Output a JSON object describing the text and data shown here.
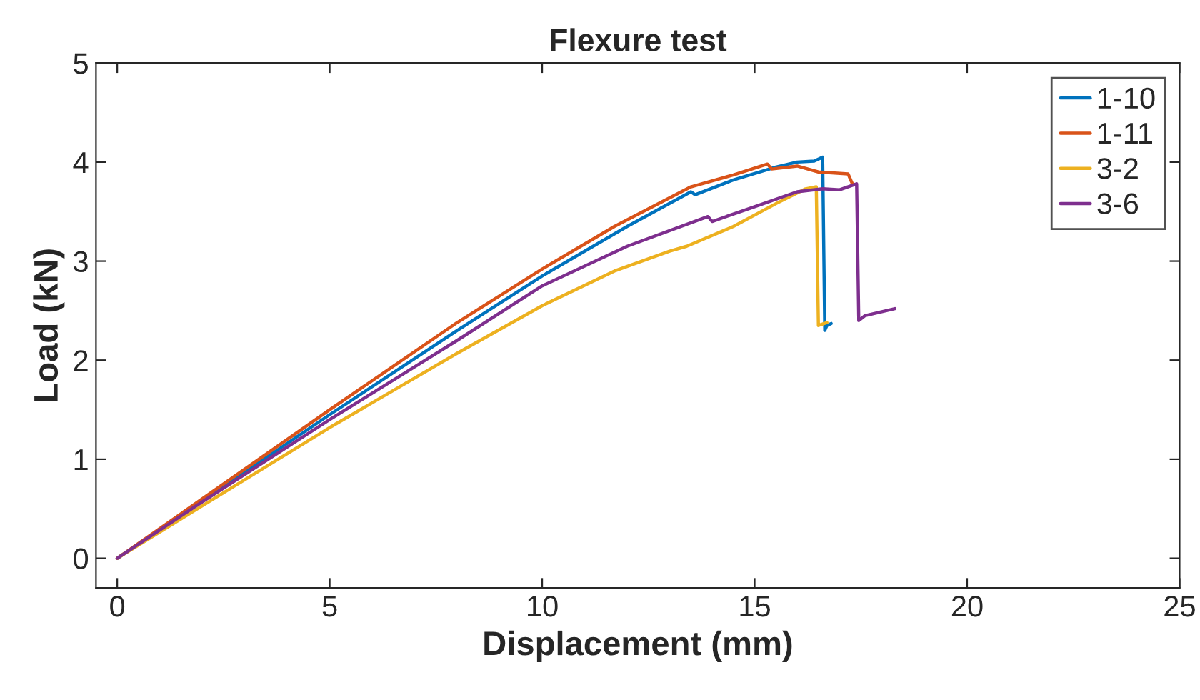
{
  "chart_data": {
    "type": "line",
    "title": "Flexure test",
    "xlabel": "Displacement (mm)",
    "ylabel": "Load (kN)",
    "xlim": [
      -0.5,
      25
    ],
    "ylim": [
      -0.3,
      5
    ],
    "xticks": [
      0,
      5,
      10,
      15,
      20,
      25
    ],
    "yticks": [
      0,
      1,
      2,
      3,
      4,
      5
    ],
    "grid": false,
    "legend": "top right",
    "series": [
      {
        "name": "1-10",
        "color": "#0072bd",
        "x": [
          0,
          2,
          5,
          8,
          10,
          12,
          13.5,
          13.6,
          14.5,
          15.5,
          16,
          16.4,
          16.6,
          16.65,
          16.7,
          16.8
        ],
        "values": [
          0,
          0.58,
          1.45,
          2.3,
          2.85,
          3.35,
          3.7,
          3.67,
          3.82,
          3.95,
          4.0,
          4.01,
          4.05,
          2.3,
          2.35,
          2.37
        ]
      },
      {
        "name": "1-11",
        "color": "#d95319",
        "x": [
          0,
          2,
          5,
          8,
          10,
          11.7,
          13.5,
          14.5,
          15.3,
          15.4,
          16,
          16.5,
          17.2,
          17.3
        ],
        "values": [
          0,
          0.6,
          1.5,
          2.38,
          2.92,
          3.35,
          3.75,
          3.87,
          3.98,
          3.93,
          3.96,
          3.9,
          3.88,
          3.78
        ]
      },
      {
        "name": "3-2",
        "color": "#edb120",
        "x": [
          0,
          2,
          5,
          8,
          10,
          11.7,
          13,
          13.4,
          14.5,
          15.5,
          16.2,
          16.45,
          16.5,
          16.7
        ],
        "values": [
          0,
          0.53,
          1.32,
          2.07,
          2.55,
          2.9,
          3.1,
          3.15,
          3.35,
          3.58,
          3.73,
          3.75,
          2.35,
          2.38
        ]
      },
      {
        "name": "3-6",
        "color": "#7e2f8e",
        "x": [
          0,
          2,
          5,
          8,
          10,
          12,
          13.9,
          14,
          15,
          16,
          16.6,
          17,
          17.4,
          17.45,
          17.6,
          18.3
        ],
        "values": [
          0,
          0.57,
          1.4,
          2.2,
          2.75,
          3.15,
          3.45,
          3.4,
          3.55,
          3.7,
          3.73,
          3.72,
          3.78,
          2.4,
          2.45,
          2.52
        ]
      }
    ]
  }
}
